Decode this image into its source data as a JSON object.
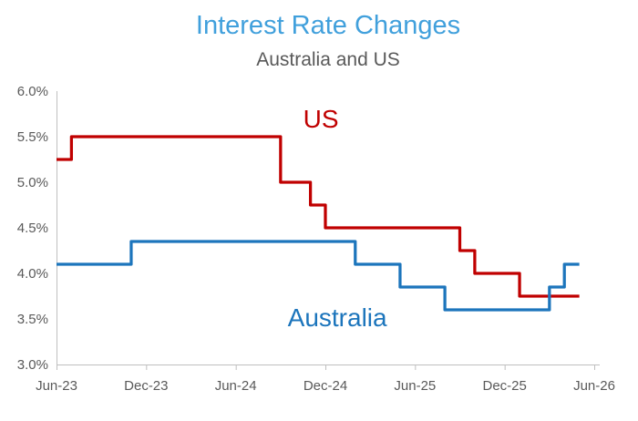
{
  "chart": {
    "title": "Interest Rate Changes",
    "subtitle": "Australia and US"
  },
  "chart_data": {
    "type": "line",
    "subtype": "step",
    "title": "Interest Rate Changes",
    "subtitle": "Australia and US",
    "grid": "off",
    "legend": "none (direct series labels drawn on chart)",
    "x_axis": {
      "unit": "months since Jun-23",
      "max_month": 36,
      "ticks": [
        {
          "label": "Jun-23",
          "month": 0
        },
        {
          "label": "Dec-23",
          "month": 6
        },
        {
          "label": "Jun-24",
          "month": 12
        },
        {
          "label": "Dec-24",
          "month": 18
        },
        {
          "label": "Jun-25",
          "month": 24
        },
        {
          "label": "Dec-25",
          "month": 30
        },
        {
          "label": "Jun-26",
          "month": 36
        }
      ]
    },
    "y_axis": {
      "min": 3.0,
      "max": 6.0,
      "ticks": [
        {
          "label": "6.0%",
          "value": 6.0
        },
        {
          "label": "5.5%",
          "value": 5.5
        },
        {
          "label": "5.0%",
          "value": 5.0
        },
        {
          "label": "4.5%",
          "value": 4.5
        },
        {
          "label": "4.0%",
          "value": 4.0
        },
        {
          "label": "3.5%",
          "value": 3.5
        },
        {
          "label": "3.0%",
          "value": 3.0
        }
      ]
    },
    "series": [
      {
        "name": "US",
        "color": "#C00000",
        "end_month": 35,
        "steps_note": "pairs of [month offset from Jun-23, rate % in effect from that month]",
        "steps": [
          [
            0,
            5.25
          ],
          [
            1,
            5.5
          ],
          [
            15,
            5.0
          ],
          [
            17,
            4.75
          ],
          [
            18,
            4.5
          ],
          [
            27,
            4.25
          ],
          [
            28,
            4.0
          ],
          [
            31,
            3.75
          ]
        ]
      },
      {
        "name": "Australia",
        "color": "#1C75BC",
        "end_month": 35,
        "steps_note": "pairs of [month offset from Jun-23, rate % in effect from that month]",
        "steps": [
          [
            0,
            4.1
          ],
          [
            5,
            4.35
          ],
          [
            20,
            4.1
          ],
          [
            23,
            3.85
          ],
          [
            26,
            3.6
          ],
          [
            33,
            3.85
          ],
          [
            34,
            4.1
          ]
        ]
      }
    ],
    "annotations": [
      {
        "text": "US",
        "color": "#C00000",
        "month": 17.7,
        "value": 5.6,
        "font_size": 28
      },
      {
        "text": "Australia",
        "color": "#1C75BC",
        "month": 18.8,
        "value": 3.42,
        "font_size": 28
      }
    ],
    "colors": {
      "title": "#41A0DC",
      "subtitle": "#595959",
      "axis_line": "#BFBFBF",
      "axis_text": "#595959",
      "us_line": "#C00000",
      "australia_line": "#1C75BC",
      "background": "#FFFFFF"
    }
  }
}
